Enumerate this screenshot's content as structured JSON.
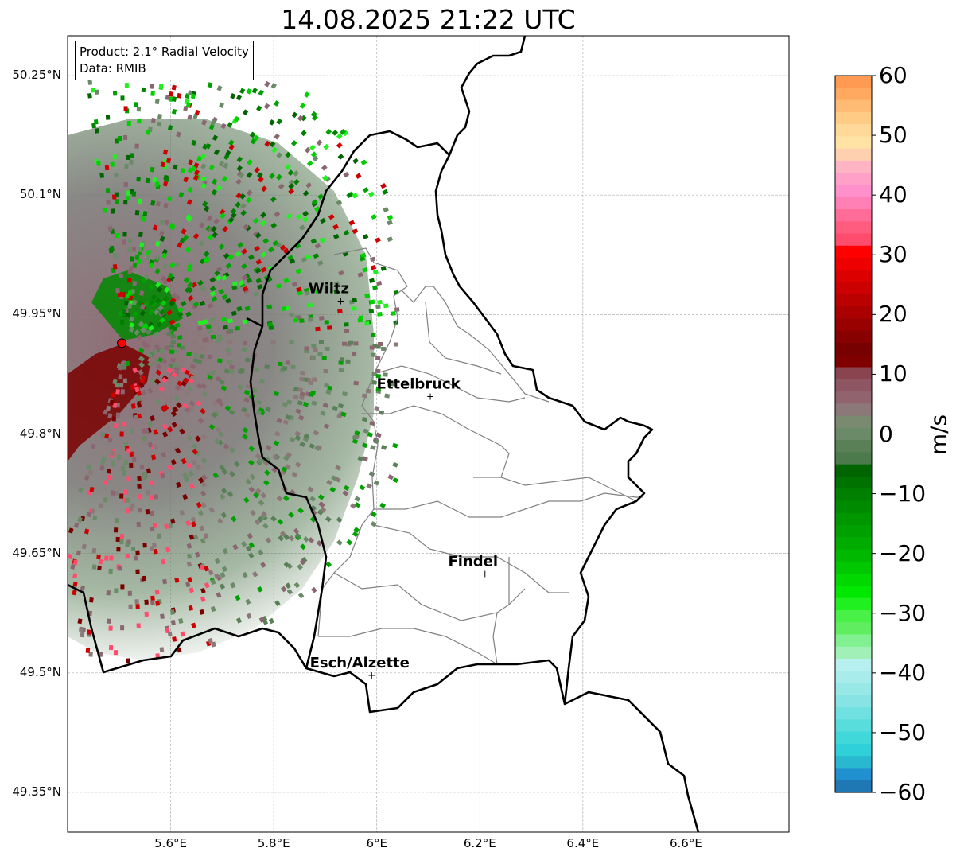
{
  "title": "14.08.2025 21:22 UTC",
  "info": {
    "product": "Product: 2.1° Radial Velocity",
    "data": "Data: RMIB"
  },
  "axes": {
    "lat_ticks": [
      "50.25°N",
      "50.1°N",
      "49.95°N",
      "49.8°N",
      "49.65°N",
      "49.5°N",
      "49.35°N"
    ],
    "lon_ticks": [
      "5.6°E",
      "5.8°E",
      "6°E",
      "6.2°E",
      "6.4°E",
      "6.6°E"
    ],
    "lon_range": [
      5.4,
      6.8
    ],
    "lat_range": [
      49.3,
      50.3
    ],
    "grid": true
  },
  "cities": [
    {
      "name": "Wiltz",
      "lon": 5.93,
      "lat": 49.967
    },
    {
      "name": "Ettelbruck",
      "lon": 6.104,
      "lat": 49.847
    },
    {
      "name": "Findel",
      "lon": 6.21,
      "lat": 49.624
    },
    {
      "name": "Esch/Alzette",
      "lon": 5.99,
      "lat": 49.497
    }
  ],
  "radar_site": {
    "lon": 5.505,
    "lat": 49.914,
    "color": "#ff0000"
  },
  "colorbar": {
    "label": "m/s",
    "min": -60,
    "max": 60,
    "ticks": [
      "60",
      "50",
      "40",
      "30",
      "20",
      "10",
      "0",
      "−10",
      "−20",
      "−30",
      "−40",
      "−50",
      "−60"
    ],
    "colors": [
      "#ff9a52",
      "#ffa860",
      "#ffbb74",
      "#ffcc86",
      "#ffd99a",
      "#ffe3a4",
      "#ffd0b0",
      "#ffb4c4",
      "#ffa0c8",
      "#ff90cc",
      "#ff80b4",
      "#ff6c98",
      "#ff5c80",
      "#ff4c6c",
      "#ff0000",
      "#ee0000",
      "#dd0000",
      "#cc0000",
      "#bb0000",
      "#aa0000",
      "#990000",
      "#880000",
      "#770000",
      "#800000",
      "#8a4450",
      "#8e5562",
      "#90636e",
      "#8c7878",
      "#7a8a70",
      "#6a8a68",
      "#5a8058",
      "#4c7a4c",
      "#006400",
      "#007200",
      "#008000",
      "#008a00",
      "#009600",
      "#00a000",
      "#00ac00",
      "#00b800",
      "#00c800",
      "#00d800",
      "#00e800",
      "#20f020",
      "#48f048",
      "#60ee60",
      "#80f090",
      "#a0f0b8",
      "#b8f0f0",
      "#a8ecec",
      "#98e8e8",
      "#88e4e4",
      "#70e0e0",
      "#58dcdc",
      "#40d8d8",
      "#30d0d8",
      "#28b8d0",
      "#2090d0",
      "#1f77b4"
    ]
  }
}
